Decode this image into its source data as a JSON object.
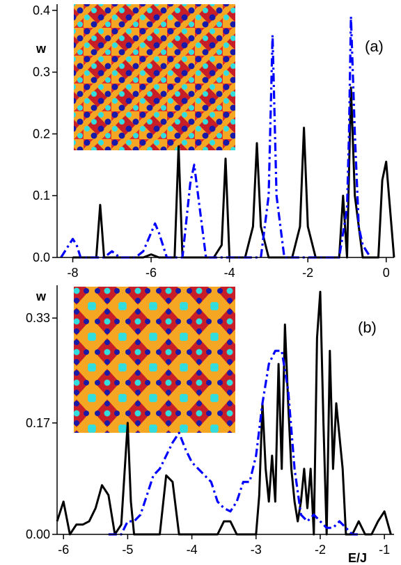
{
  "chart_data": [
    {
      "type": "line",
      "panel_label": "(a)",
      "ylabel": "w",
      "xlabel": "",
      "xlim": [
        -8.4,
        0.2
      ],
      "ylim": [
        0,
        0.41
      ],
      "x_ticks": [
        -8,
        -6,
        -4,
        -2,
        0
      ],
      "x_tick_labels": [
        "-8",
        "-6",
        "-4",
        "-2",
        "0"
      ],
      "y_ticks": [
        0.0,
        0.1,
        0.2,
        0.3,
        0.4
      ],
      "y_tick_labels": [
        "0.0",
        "0.1",
        "0.2",
        "0.3",
        "0.4"
      ],
      "grid": false,
      "series": [
        {
          "style": "solid",
          "color": "#000000",
          "x": [
            -8.0,
            -7.8,
            -7.6,
            -7.4,
            -7.3,
            -7.2,
            -7.0,
            -6.8,
            -6.6,
            -6.4,
            -6.2,
            -6.0,
            -5.8,
            -5.6,
            -5.4,
            -5.3,
            -5.2,
            -5.0,
            -4.8,
            -4.6,
            -4.4,
            -4.2,
            -4.1,
            -4.0,
            -3.8,
            -3.6,
            -3.4,
            -3.3,
            -3.2,
            -3.0,
            -2.8,
            -2.6,
            -2.4,
            -2.2,
            -2.1,
            -2.0,
            -1.8,
            -1.6,
            -1.4,
            -1.2,
            -1.1,
            -1.0,
            -0.9,
            -0.8,
            -0.6,
            -0.4,
            -0.2,
            -0.1,
            0.0,
            0.2
          ],
          "y": [
            0.0,
            0.0,
            0.0,
            0.0,
            0.085,
            0.0,
            0.0,
            0.0,
            0.0,
            0.0,
            0.0,
            0.005,
            0.0,
            0.0,
            0.0,
            0.18,
            0.0,
            0.0,
            0.0,
            0.0,
            0.0,
            0.02,
            0.16,
            0.0,
            0.0,
            0.0,
            0.05,
            0.185,
            0.05,
            0.0,
            0.0,
            0.0,
            0.0,
            0.05,
            0.21,
            0.05,
            0.0,
            0.0,
            0.0,
            0.0,
            0.1,
            0.0,
            0.275,
            0.1,
            0.0,
            0.0,
            0.0,
            0.125,
            0.155,
            0.0
          ]
        },
        {
          "style": "dashdot",
          "color": "#0000ff",
          "x": [
            -8.3,
            -8.1,
            -8.0,
            -7.9,
            -7.8,
            -7.6,
            -7.2,
            -7.0,
            -6.8,
            -6.4,
            -6.2,
            -6.0,
            -5.9,
            -5.8,
            -5.6,
            -5.4,
            -5.2,
            -5.0,
            -4.9,
            -4.8,
            -4.6,
            -4.4,
            -4.0,
            -3.6,
            -3.2,
            -3.0,
            -2.9,
            -2.8,
            -2.6,
            -2.4,
            -2.0,
            -1.6,
            -1.2,
            -1.0,
            -0.95,
            -0.9,
            -0.8,
            -0.7,
            -0.6,
            -0.4
          ],
          "y": [
            0.0,
            0.02,
            0.03,
            0.02,
            0.0,
            0.0,
            0.0,
            0.01,
            0.0,
            0.0,
            0.01,
            0.04,
            0.055,
            0.04,
            0.0,
            0.0,
            0.0,
            0.12,
            0.15,
            0.1,
            0.0,
            0.0,
            0.0,
            0.0,
            0.0,
            0.1,
            0.36,
            0.1,
            0.0,
            0.0,
            0.0,
            0.0,
            0.0,
            0.08,
            0.2,
            0.39,
            0.2,
            0.05,
            0.02,
            0.0
          ]
        }
      ]
    },
    {
      "type": "line",
      "panel_label": "(b)",
      "ylabel": "w",
      "xlabel": "E/J",
      "xlim": [
        -6.1,
        -0.85
      ],
      "ylim": [
        0,
        0.38
      ],
      "x_ticks": [
        -6,
        -5,
        -4,
        -3,
        -2,
        -1
      ],
      "x_tick_labels": [
        "-6",
        "-5",
        "-4",
        "-3",
        "-2",
        "-1"
      ],
      "y_ticks": [
        0.0,
        0.17,
        0.33
      ],
      "y_tick_labels": [
        "0.00",
        "0.17",
        "0.33"
      ],
      "grid": false,
      "series": [
        {
          "style": "solid",
          "color": "#000000",
          "x": [
            -6.1,
            -6.0,
            -5.9,
            -5.8,
            -5.7,
            -5.6,
            -5.5,
            -5.4,
            -5.3,
            -5.2,
            -5.1,
            -5.0,
            -4.95,
            -4.9,
            -4.8,
            -4.7,
            -4.6,
            -4.5,
            -4.4,
            -4.3,
            -4.2,
            -4.0,
            -3.8,
            -3.6,
            -3.5,
            -3.4,
            -3.3,
            -3.2,
            -3.0,
            -2.95,
            -2.9,
            -2.85,
            -2.8,
            -2.75,
            -2.7,
            -2.65,
            -2.6,
            -2.55,
            -2.5,
            -2.45,
            -2.4,
            -2.35,
            -2.3,
            -2.25,
            -2.2,
            -2.15,
            -2.1,
            -2.05,
            -2.0,
            -1.95,
            -1.9,
            -1.85,
            -1.8,
            -1.75,
            -1.7,
            -1.65,
            -1.6,
            -1.5,
            -1.4,
            -1.3,
            -1.2,
            -1.1,
            -1.0,
            -0.9
          ],
          "y": [
            0.02,
            0.05,
            0.0,
            0.015,
            0.015,
            0.02,
            0.04,
            0.075,
            0.06,
            0.0,
            0.015,
            0.17,
            0.05,
            0.0,
            0.0,
            0.0,
            0.0,
            0.0,
            0.09,
            0.08,
            0.0,
            0.0,
            0.0,
            0.0,
            0.02,
            0.02,
            0.0,
            0.0,
            0.0,
            0.06,
            0.2,
            0.1,
            0.05,
            0.12,
            0.05,
            0.26,
            0.1,
            0.32,
            0.2,
            0.1,
            0.05,
            0.02,
            0.05,
            0.1,
            0.04,
            0.1,
            0.0,
            0.3,
            0.37,
            0.17,
            0.0,
            0.28,
            0.1,
            0.2,
            0.15,
            0.1,
            0.0,
            0.0,
            0.02,
            0.0,
            0.0,
            0.02,
            0.035,
            0.0
          ]
        },
        {
          "style": "dashdot",
          "color": "#0000ff",
          "x": [
            -5.3,
            -5.2,
            -5.1,
            -5.0,
            -4.9,
            -4.8,
            -4.7,
            -4.6,
            -4.5,
            -4.4,
            -4.3,
            -4.2,
            -4.1,
            -4.0,
            -3.9,
            -3.8,
            -3.7,
            -3.6,
            -3.5,
            -3.4,
            -3.3,
            -3.2,
            -3.1,
            -3.0,
            -2.9,
            -2.8,
            -2.7,
            -2.6,
            -2.5,
            -2.4,
            -2.3,
            -2.2,
            -2.1,
            -2.0,
            -1.9,
            -1.8,
            -1.7,
            -1.6,
            -1.5,
            -1.4
          ],
          "y": [
            0.0,
            0.0,
            0.0,
            0.02,
            0.02,
            0.03,
            0.06,
            0.09,
            0.1,
            0.12,
            0.14,
            0.155,
            0.13,
            0.11,
            0.1,
            0.09,
            0.08,
            0.05,
            0.04,
            0.035,
            0.05,
            0.08,
            0.08,
            0.12,
            0.2,
            0.26,
            0.28,
            0.28,
            0.22,
            0.1,
            0.03,
            0.02,
            0.03,
            0.02,
            0.01,
            0.01,
            0.02,
            0.01,
            0.0,
            0.0
          ]
        }
      ]
    }
  ]
}
